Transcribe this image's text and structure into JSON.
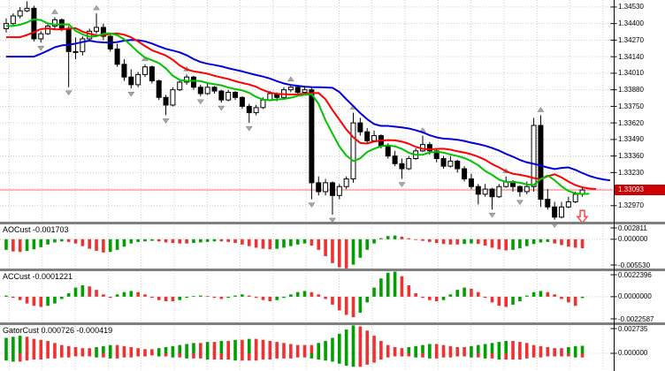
{
  "window": {
    "background": "#ffffff"
  },
  "colors": {
    "grid": "#cccccc",
    "candle_up_fill": "#ffffff",
    "candle_down_fill": "#000000",
    "candle_border": "#000000",
    "hist_up": "#00a000",
    "hist_down": "#ee3232",
    "alligator_jaw": "#0000dd",
    "alligator_teeth": "#ff0000",
    "alligator_lips": "#00c400",
    "price_line": "#ff9a9a",
    "price_tag_bg": "#cc0000",
    "price_tag_text": "#ffffff",
    "fractal": "#a8a8a8",
    "fractal_stroke": "#777777",
    "signal_arrow": "#ff4545",
    "separator": "#7f7f7f",
    "axis_line": "#000000",
    "axis_text": "#000000"
  },
  "price_axis": {
    "labels": [
      "1.34530",
      "1.34400",
      "1.34270",
      "1.34140",
      "1.34010",
      "1.33880",
      "1.33750",
      "1.33620",
      "1.33490",
      "1.33360",
      "1.33230",
      "1.32970"
    ],
    "current": {
      "text": "1.33093",
      "v": 1.33093
    }
  },
  "panels": [
    {
      "label": "AOCust -0.001703",
      "axis": [
        {
          "text": "0.002811",
          "v": 0.002811
        },
        {
          "text": "0.000000",
          "v": 0
        },
        {
          "text": "-0.005530",
          "v": -0.00553
        }
      ]
    },
    {
      "label": "ACCust -0.0001221",
      "axis": [
        {
          "text": "0.0022396",
          "v": 0.0022396
        },
        {
          "text": "0.0000000",
          "v": 0
        },
        {
          "text": "-0.0022587",
          "v": -0.0022587
        }
      ]
    },
    {
      "label": "GatorCust 0.000726 -0.000419",
      "axis": [
        {
          "text": "0.002735",
          "v": 0.002735
        },
        {
          "text": "0.000000",
          "v": 0
        }
      ]
    }
  ],
  "chart_data": {
    "type": "candlestick",
    "main": {
      "ylim": [
        1.32844,
        1.34585
      ],
      "grid_price_top": 1.3453,
      "grid_step": 0.0013,
      "grid_count": 13,
      "current_price": 1.33093
    },
    "candles": [
      [
        1.3436,
        1.3444,
        1.3433,
        1.344
      ],
      [
        1.344,
        1.3448,
        1.3438,
        1.3446
      ],
      [
        1.3446,
        1.3453,
        1.3444,
        1.345
      ],
      [
        1.345,
        1.34575,
        1.3449,
        1.3452
      ],
      [
        1.3452,
        1.3454,
        1.3426,
        1.3428
      ],
      [
        1.3428,
        1.3434,
        1.3425,
        1.3432
      ],
      [
        1.3432,
        1.344,
        1.3431,
        1.3438
      ],
      [
        1.3438,
        1.3445,
        1.3436,
        1.3443
      ],
      [
        1.3443,
        1.3444,
        1.3434,
        1.3436
      ],
      [
        1.3436,
        1.3438,
        1.339,
        1.3418
      ],
      [
        1.3418,
        1.3429,
        1.3412,
        1.3418
      ],
      [
        1.3418,
        1.343,
        1.3415,
        1.3428
      ],
      [
        1.3428,
        1.3436,
        1.3426,
        1.3434
      ],
      [
        1.3434,
        1.3448,
        1.3432,
        1.3437
      ],
      [
        1.3437,
        1.344,
        1.3427,
        1.343
      ],
      [
        1.343,
        1.3432,
        1.3418,
        1.342
      ],
      [
        1.342,
        1.3424,
        1.3406,
        1.3408
      ],
      [
        1.3408,
        1.3412,
        1.3395,
        1.3398
      ],
      [
        1.3398,
        1.3404,
        1.3389,
        1.3392
      ],
      [
        1.3392,
        1.3402,
        1.339,
        1.34
      ],
      [
        1.34,
        1.3408,
        1.3398,
        1.3406
      ],
      [
        1.3406,
        1.3407,
        1.3393,
        1.3395
      ],
      [
        1.3395,
        1.3396,
        1.338,
        1.3382
      ],
      [
        1.3382,
        1.3384,
        1.3368,
        1.3376
      ],
      [
        1.3376,
        1.339,
        1.3375,
        1.3388
      ],
      [
        1.3388,
        1.3396,
        1.3387,
        1.3394
      ],
      [
        1.3394,
        1.34,
        1.3392,
        1.3398
      ],
      [
        1.3398,
        1.3399,
        1.3388,
        1.339
      ],
      [
        1.339,
        1.3392,
        1.3383,
        1.3385
      ],
      [
        1.3385,
        1.3393,
        1.3384,
        1.339
      ],
      [
        1.339,
        1.3391,
        1.3385,
        1.3387
      ],
      [
        1.3387,
        1.3388,
        1.3378,
        1.338
      ],
      [
        1.338,
        1.3388,
        1.3379,
        1.3386
      ],
      [
        1.3386,
        1.3387,
        1.338,
        1.3382
      ],
      [
        1.3382,
        1.3383,
        1.3373,
        1.3375
      ],
      [
        1.3375,
        1.3377,
        1.3362,
        1.337
      ],
      [
        1.337,
        1.3376,
        1.3368,
        1.3374
      ],
      [
        1.3374,
        1.3382,
        1.3373,
        1.338
      ],
      [
        1.338,
        1.3387,
        1.3379,
        1.3385
      ],
      [
        1.3385,
        1.3386,
        1.3379,
        1.3382
      ],
      [
        1.3382,
        1.339,
        1.3381,
        1.3388
      ],
      [
        1.3388,
        1.3392,
        1.3386,
        1.339
      ],
      [
        1.339,
        1.3391,
        1.3384,
        1.3386
      ],
      [
        1.3386,
        1.339,
        1.3384,
        1.3388
      ],
      [
        1.3388,
        1.339,
        1.3302,
        1.3315
      ],
      [
        1.3315,
        1.332,
        1.3305,
        1.3308
      ],
      [
        1.3308,
        1.3318,
        1.3305,
        1.3315
      ],
      [
        1.3315,
        1.3316,
        1.329,
        1.3305
      ],
      [
        1.3305,
        1.3314,
        1.3302,
        1.3312
      ],
      [
        1.3312,
        1.332,
        1.331,
        1.3318
      ],
      [
        1.3318,
        1.337,
        1.3315,
        1.3362
      ],
      [
        1.3362,
        1.3366,
        1.3352,
        1.3355
      ],
      [
        1.3355,
        1.3358,
        1.3346,
        1.3348
      ],
      [
        1.3348,
        1.3356,
        1.3347,
        1.3352
      ],
      [
        1.3352,
        1.3353,
        1.3342,
        1.3344
      ],
      [
        1.3344,
        1.3346,
        1.3334,
        1.3336
      ],
      [
        1.3336,
        1.334,
        1.3328,
        1.333
      ],
      [
        1.333,
        1.3334,
        1.3318,
        1.3326
      ],
      [
        1.3326,
        1.3336,
        1.3325,
        1.3334
      ],
      [
        1.3334,
        1.3342,
        1.3333,
        1.334
      ],
      [
        1.334,
        1.3352,
        1.3339,
        1.3345
      ],
      [
        1.3345,
        1.3347,
        1.3337,
        1.334
      ],
      [
        1.334,
        1.3341,
        1.3331,
        1.3334
      ],
      [
        1.3334,
        1.3336,
        1.3326,
        1.3328
      ],
      [
        1.3328,
        1.3336,
        1.3327,
        1.3332
      ],
      [
        1.3332,
        1.3333,
        1.3323,
        1.3326
      ],
      [
        1.3326,
        1.3328,
        1.3316,
        1.3318
      ],
      [
        1.3318,
        1.3322,
        1.331,
        1.3312
      ],
      [
        1.3312,
        1.3314,
        1.3298,
        1.3306
      ],
      [
        1.3306,
        1.3314,
        1.3304,
        1.331
      ],
      [
        1.331,
        1.3311,
        1.3294,
        1.3304
      ],
      [
        1.3304,
        1.3314,
        1.3303,
        1.3312
      ],
      [
        1.3312,
        1.332,
        1.3311,
        1.3316
      ],
      [
        1.3316,
        1.3317,
        1.3308,
        1.3312
      ],
      [
        1.3312,
        1.3313,
        1.3304,
        1.3308
      ],
      [
        1.3308,
        1.3316,
        1.3306,
        1.3312
      ],
      [
        1.3312,
        1.3366,
        1.3308,
        1.336
      ],
      [
        1.336,
        1.3368,
        1.3296,
        1.3302
      ],
      [
        1.3302,
        1.331,
        1.3294,
        1.3296
      ],
      [
        1.3296,
        1.33,
        1.3286,
        1.3288
      ],
      [
        1.3288,
        1.33,
        1.3287,
        1.3296
      ],
      [
        1.3296,
        1.3304,
        1.3295,
        1.33
      ],
      [
        1.33,
        1.3308,
        1.3299,
        1.3306
      ],
      [
        1.3306,
        1.3312,
        1.3304,
        1.33093
      ]
    ],
    "alligator": {
      "jaw": {
        "period": 13,
        "shift": 4,
        "seed": 1.3412
      },
      "teeth": {
        "period": 8,
        "shift": 2,
        "seed": 1.3428
      },
      "lips": {
        "period": 5,
        "shift": 1,
        "seed": 1.3438
      }
    },
    "indicators": [
      {
        "name": "AOCust",
        "current": -0.001703,
        "range": {
          "max": 0.002811,
          "min": -0.00553
        },
        "values": [
          -0.002,
          -0.0023,
          -0.0024,
          -0.0022,
          -0.0019,
          -0.0015,
          -0.001,
          -0.0006,
          -0.0004,
          -0.0005,
          -0.0008,
          -0.0013,
          -0.0018,
          -0.0022,
          -0.0025,
          -0.0024,
          -0.002,
          -0.0014,
          -0.0008,
          -0.0005,
          -0.0004,
          -0.0003,
          -0.0004,
          -0.0006,
          -0.0007,
          -0.0008,
          -0.0008,
          -0.0007,
          -0.0006,
          -0.0005,
          -0.0004,
          -0.0004,
          -0.0005,
          -0.0007,
          -0.001,
          -0.0013,
          -0.0016,
          -0.0018,
          -0.0019,
          -0.0018,
          -0.0016,
          -0.0013,
          -0.001,
          -0.0008,
          -0.0012,
          -0.002,
          -0.0032,
          -0.0045,
          -0.0053,
          -0.0055,
          -0.0048,
          -0.0035,
          -0.002,
          -0.0008,
          0.0002,
          0.0006,
          0.0007,
          0.0005,
          0.0002,
          -0.0001,
          -0.0003,
          -0.0005,
          -0.0007,
          -0.0009,
          -0.001,
          -0.001,
          -0.0009,
          -0.0008,
          -0.0009,
          -0.0012,
          -0.0016,
          -0.0019,
          -0.0021,
          -0.002,
          -0.0017,
          -0.0013,
          -0.0009,
          -0.0006,
          -0.0005,
          -0.0008,
          -0.0011,
          -0.0014,
          -0.0016,
          -0.001703
        ]
      },
      {
        "name": "ACCust",
        "current": -0.0001221,
        "range": {
          "max": 0.0022396,
          "min": -0.0022587
        },
        "values": [
          0.0001,
          -0.0001,
          -0.0003,
          -0.0006,
          -0.0008,
          -0.0009,
          -0.0008,
          -0.0006,
          -0.0002,
          0.0003,
          0.0008,
          0.001,
          0.0009,
          0.0006,
          0.0002,
          -0.0001,
          0.0002,
          0.0004,
          0.0005,
          0.0004,
          0.0002,
          -0.0001,
          -0.0003,
          -0.0004,
          -0.0004,
          -0.0003,
          -0.0001,
          0.0,
          0.0001,
          0.0,
          -0.0001,
          -0.0002,
          -0.0001,
          0.0001,
          0.0002,
          0.0001,
          -0.0001,
          -0.0003,
          -0.0004,
          -0.0003,
          -0.0001,
          0.0002,
          0.0004,
          0.0005,
          0.0004,
          0.0002,
          -0.0002,
          -0.0007,
          -0.0012,
          -0.0016,
          -0.0018,
          -0.0014,
          -0.0005,
          0.0008,
          0.0016,
          0.0021,
          0.0022,
          0.0018,
          0.001,
          0.0003,
          -0.0001,
          -0.0003,
          -0.0004,
          -0.0003,
          0.0002,
          0.0006,
          0.0008,
          0.0007,
          0.0004,
          -0.0001,
          -0.0005,
          -0.0008,
          -0.0009,
          -0.0007,
          -0.0004,
          0.0001,
          0.0004,
          0.0005,
          0.0004,
          0.0002,
          -0.0002,
          -0.0005,
          -0.0008,
          -0.00012
        ]
      },
      {
        "name": "GatorCust",
        "current_top": 0.000726,
        "current_bottom": -0.000419,
        "range": {
          "max": 0.002735,
          "min": -0.00171
        },
        "values_top": [
          0.0015,
          0.0016,
          0.0017,
          0.0016,
          0.0014,
          0.0013,
          0.0012,
          0.001,
          0.0008,
          0.0007,
          0.0006,
          0.0005,
          0.0005,
          0.0006,
          0.0007,
          0.0008,
          0.0008,
          0.0007,
          0.0006,
          0.0005,
          0.0004,
          0.0004,
          0.0005,
          0.0006,
          0.0007,
          0.0008,
          0.0009,
          0.001,
          0.001,
          0.0011,
          0.0011,
          0.0012,
          0.0012,
          0.0013,
          0.0013,
          0.0014,
          0.0014,
          0.0013,
          0.0012,
          0.0011,
          0.001,
          0.0009,
          0.0008,
          0.0008,
          0.0008,
          0.001,
          0.0012,
          0.0015,
          0.0019,
          0.0023,
          0.0027,
          0.0026,
          0.0022,
          0.0017,
          0.0012,
          0.0008,
          0.0006,
          0.0005,
          0.0006,
          0.0007,
          0.0008,
          0.0009,
          0.0009,
          0.0008,
          0.0007,
          0.0006,
          0.0006,
          0.0007,
          0.0008,
          0.0009,
          0.001,
          0.0011,
          0.0012,
          0.0012,
          0.0011,
          0.001,
          0.0008,
          0.0007,
          0.0006,
          0.0005,
          0.0005,
          0.0006,
          0.0007,
          0.000726
        ],
        "values_bottom": [
          -0.0007,
          -0.0008,
          -0.0008,
          -0.0007,
          -0.0006,
          -0.0006,
          -0.0005,
          -0.0005,
          -0.0004,
          -0.0004,
          -0.0003,
          -0.0003,
          -0.0003,
          -0.0004,
          -0.0004,
          -0.0005,
          -0.0005,
          -0.0004,
          -0.0004,
          -0.0003,
          -0.0003,
          -0.0002,
          -0.0003,
          -0.0003,
          -0.0004,
          -0.0004,
          -0.0005,
          -0.0005,
          -0.0005,
          -0.0006,
          -0.0006,
          -0.0006,
          -0.0006,
          -0.0007,
          -0.0007,
          -0.0007,
          -0.0007,
          -0.0006,
          -0.0006,
          -0.0005,
          -0.0005,
          -0.0005,
          -0.0004,
          -0.0004,
          -0.0005,
          -0.0006,
          -0.0007,
          -0.0008,
          -0.001,
          -0.0012,
          -0.0013,
          -0.0013,
          -0.0011,
          -0.0009,
          -0.0006,
          -0.0004,
          -0.0003,
          -0.0003,
          -0.0003,
          -0.0004,
          -0.0004,
          -0.0005,
          -0.0005,
          -0.0004,
          -0.0004,
          -0.0003,
          -0.0003,
          -0.0004,
          -0.0004,
          -0.0005,
          -0.0005,
          -0.0006,
          -0.0006,
          -0.0006,
          -0.0006,
          -0.0005,
          -0.0004,
          -0.0004,
          -0.0003,
          -0.0003,
          -0.0003,
          -0.0003,
          -0.0004,
          -0.0004
        ]
      }
    ],
    "signal_arrow": {
      "type": "sell",
      "index": 83,
      "price": 1.3296
    }
  }
}
